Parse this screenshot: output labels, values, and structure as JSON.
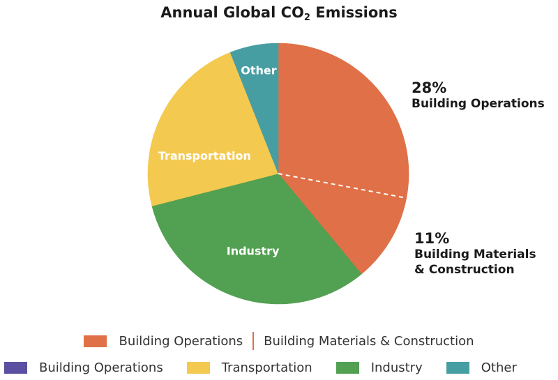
{
  "chart_data": {
    "type": "pie",
    "title": "Annual Global CO",
    "title_subscript": "2",
    "title_suffix": " Emissions",
    "slices": [
      {
        "name": "Building Operations",
        "value": 28,
        "color": "#e07047"
      },
      {
        "name": "Building Materials & Construction",
        "value": 11,
        "color": "#e07047"
      },
      {
        "name": "Industry",
        "value": 32,
        "color": "#52a052"
      },
      {
        "name": "Transportation",
        "value": 23,
        "color": "#f3c950"
      },
      {
        "name": "Other",
        "value": 6,
        "color": "#479ea2"
      }
    ],
    "slice_labels": {
      "Transportation": "Transportation",
      "Industry": "Industry",
      "Other": "Other"
    },
    "callouts": [
      {
        "pct": "28%",
        "label": "Building Operations"
      },
      {
        "pct": "11%",
        "label_line1": "Building Materials",
        "label_line2": "& Construction"
      }
    ],
    "legend_row_1": [
      {
        "label": "Building Operations",
        "color": "#e07047"
      },
      {
        "label": "Building Materials & Construction",
        "color": "#e07047"
      }
    ],
    "legend_row_2": [
      {
        "label": "Building Operations",
        "color": "#5a4fa0"
      },
      {
        "label": "Transportation",
        "color": "#f3c950"
      },
      {
        "label": "Industry",
        "color": "#52a052"
      },
      {
        "label": "Other",
        "color": "#479ea2"
      }
    ],
    "divider_color": "#ffffff",
    "legend_placement": "bottom"
  }
}
